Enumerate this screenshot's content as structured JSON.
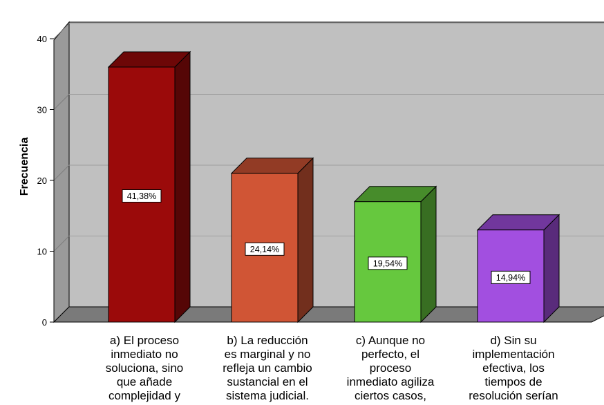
{
  "chart_data": {
    "type": "bar",
    "ylabel": "Frecuencia",
    "ylim": [
      0,
      40
    ],
    "yticks": [
      0,
      10,
      20,
      30,
      40
    ],
    "grid": true,
    "three_d": true,
    "categories": [
      [
        "a) El proceso",
        "inmediato no",
        "soluciona, sino",
        "que añade",
        "complejidad y"
      ],
      [
        "b) La reducción",
        "es marginal y no",
        "refleja un cambio",
        "sustancial en el",
        "sistema judicial."
      ],
      [
        "c) Aunque no",
        "perfecto, el",
        "proceso",
        "inmediato agiliza",
        "ciertos casos,"
      ],
      [
        "d) Sin su",
        "implementación",
        "efectiva, los",
        "tiempos de",
        "resolución serían"
      ]
    ],
    "values": [
      36,
      21,
      17,
      13
    ],
    "data_labels": [
      "41,38%",
      "24,14%",
      "19,54%",
      "14,94%"
    ],
    "colors": [
      "#9b0a0a",
      "#d05535",
      "#66c83e",
      "#a24fe0"
    ],
    "wall_color": "#c0c0c0",
    "floor_color": "#7a7a7a"
  }
}
